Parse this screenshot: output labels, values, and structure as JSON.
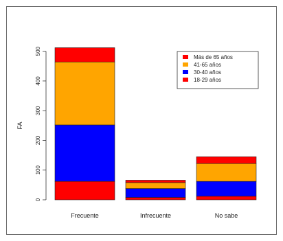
{
  "chart_data": {
    "type": "bar",
    "stacked": true,
    "categories": [
      "Frecuente",
      "Infrecuente",
      "No sabe"
    ],
    "ylabel": "FA",
    "xlabel": "",
    "ylim": [
      0,
      520
    ],
    "yticks": [
      0,
      100,
      200,
      300,
      400,
      500
    ],
    "grid": false,
    "legend_position": "top-right",
    "series": [
      {
        "name": "18-29 años",
        "color": "#ff0000",
        "values": [
          62,
          8,
          12
        ]
      },
      {
        "name": "30-40 años",
        "color": "#0000ff",
        "values": [
          190,
          30,
          50
        ]
      },
      {
        "name": "41-65 años",
        "color": "#ffa500",
        "values": [
          212,
          20,
          60
        ]
      },
      {
        "name": "Más de 65 años",
        "color": "#ff0000",
        "values": [
          48,
          8,
          23
        ]
      }
    ],
    "legend_order": [
      "Más de 65 años",
      "41-65 años",
      "30-40 años",
      "18-29 años"
    ]
  }
}
